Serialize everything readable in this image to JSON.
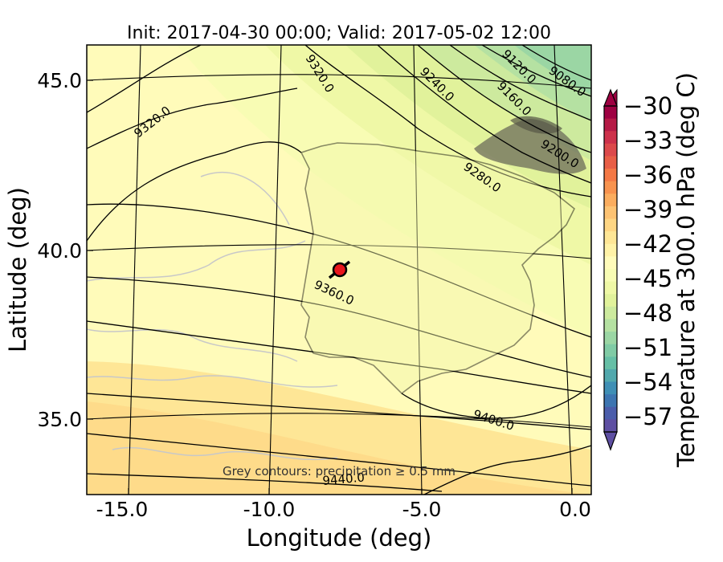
{
  "title": "Init: 2017-04-30 00:00; Valid: 2017-05-02 12:00",
  "x_axis": {
    "label": "Longitude (deg)",
    "ticks": [
      "-15.0",
      "-10.0",
      "-5.0",
      "0.0"
    ]
  },
  "y_axis": {
    "label": "Latitude (deg)",
    "ticks": [
      "45.0",
      "40.0",
      "35.0"
    ]
  },
  "colorbar": {
    "label": "Temperature at 300.0 hPa (deg C)",
    "ticks": [
      "−30",
      "−33",
      "−36",
      "−39",
      "−42",
      "−45",
      "−48",
      "−51",
      "−54",
      "−57"
    ],
    "colors": [
      "#9e0142",
      "#b51a46",
      "#cd314b",
      "#dc494b",
      "#e85e46",
      "#f47845",
      "#f8934f",
      "#fbad5f",
      "#fdc373",
      "#fed684",
      "#fee696",
      "#fff2a7",
      "#fffbba",
      "#f8fcb4",
      "#eff8a6",
      "#e1f29b",
      "#cdea9e",
      "#b5e1a2",
      "#9bd6a4",
      "#80cba5",
      "#66bfa6",
      "#51a8ad",
      "#3f8fb5",
      "#3d75b1",
      "#4b5dab",
      "#5e4fa2"
    ]
  },
  "contour_labels": [
    "9320.0",
    "9320.0",
    "9240.0",
    "9120.0",
    "9080.0",
    "9160.0",
    "9200.0",
    "9280.0",
    "9360.0",
    "9400.0",
    "9440.0"
  ],
  "annotation": "Grey contours: precipitation ≥ 0.5 mm",
  "marker": {
    "name": "site-marker",
    "color": "#e8161c"
  },
  "colors": {
    "warm_fill": "#fee696",
    "mid_fill": "#fffbba",
    "cool_fill": "#eff8a6",
    "cold_fill": "#b5e1a2",
    "coldest_fill": "#80cba5"
  }
}
